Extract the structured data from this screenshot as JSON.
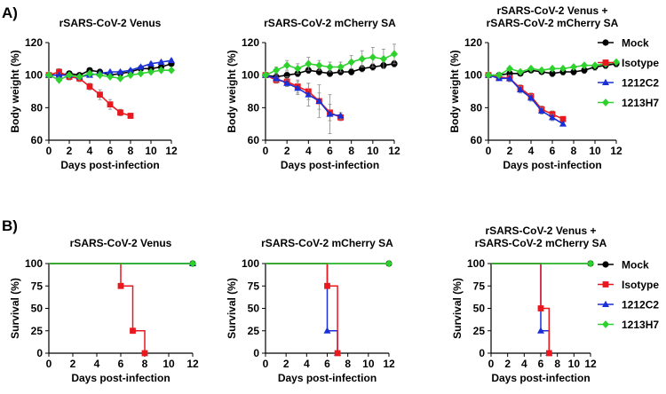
{
  "figure": {
    "panels": [
      {
        "label": "A)"
      },
      {
        "label": "B)"
      }
    ]
  },
  "legend": {
    "items": [
      {
        "name": "Mock",
        "color": "#000000",
        "marker": "circle"
      },
      {
        "name": "Isotype",
        "color": "#e8181e",
        "marker": "square"
      },
      {
        "name": "1212C2",
        "color": "#1a2fd6",
        "marker": "triangle"
      },
      {
        "name": "1213H7",
        "color": "#2ed12e",
        "marker": "diamond"
      }
    ]
  },
  "chart_data": [
    {
      "type": "line",
      "panel": "A",
      "title_lines": [
        "rSARS-CoV-2 Venus"
      ],
      "xlabel": "Days post-infection",
      "ylabel": "Body weight (%)",
      "xlim": [
        0,
        12
      ],
      "ylim": [
        60,
        120
      ],
      "xticks": [
        0,
        2,
        4,
        6,
        8,
        10,
        12
      ],
      "yticks": [
        60,
        80,
        100,
        120
      ],
      "series": [
        {
          "name": "Mock",
          "x": [
            0,
            1,
            2,
            3,
            4,
            5,
            6,
            7,
            8,
            9,
            10,
            11,
            12
          ],
          "y": [
            100,
            100,
            101,
            100,
            103,
            102,
            100,
            101,
            102,
            104,
            104,
            105,
            107
          ],
          "err": [
            1,
            1,
            1,
            1,
            1,
            1,
            1,
            1,
            1,
            1,
            1,
            1,
            1
          ]
        },
        {
          "name": "Isotype",
          "x": [
            0,
            1,
            2,
            3,
            4,
            5,
            6,
            7,
            8
          ],
          "y": [
            100,
            102,
            99,
            98,
            93,
            88,
            82,
            77,
            75
          ],
          "err": [
            1,
            2,
            2,
            2,
            2,
            3,
            3,
            2,
            1
          ]
        },
        {
          "name": "1212C2",
          "x": [
            0,
            1,
            2,
            3,
            4,
            5,
            6,
            7,
            8,
            9,
            10,
            11,
            12
          ],
          "y": [
            100,
            100,
            100,
            99,
            100,
            101,
            102,
            102,
            103,
            105,
            107,
            108,
            109
          ],
          "err": [
            1,
            1,
            1,
            1,
            1,
            1,
            1,
            1,
            1,
            1,
            1,
            1,
            1
          ]
        },
        {
          "name": "1213H7",
          "x": [
            0,
            1,
            2,
            3,
            4,
            5,
            6,
            7,
            8,
            9,
            10,
            11,
            12
          ],
          "y": [
            100,
            97,
            100,
            99,
            101,
            100,
            99,
            98,
            100,
            101,
            102,
            103,
            103
          ],
          "err": [
            1,
            1,
            1,
            1,
            1,
            1,
            1,
            1,
            1,
            1,
            1,
            1,
            1
          ]
        }
      ]
    },
    {
      "type": "line",
      "panel": "A",
      "title_lines": [
        "rSARS-CoV-2 mCherry SA"
      ],
      "xlabel": "Days post-infection",
      "ylabel": "Body weight (%)",
      "xlim": [
        0,
        12
      ],
      "ylim": [
        60,
        120
      ],
      "xticks": [
        0,
        2,
        4,
        6,
        8,
        10,
        12
      ],
      "yticks": [
        60,
        80,
        100,
        120
      ],
      "series": [
        {
          "name": "Mock",
          "x": [
            0,
            1,
            2,
            3,
            4,
            5,
            6,
            7,
            8,
            9,
            10,
            11,
            12
          ],
          "y": [
            100,
            99,
            100,
            101,
            103,
            102,
            101,
            102,
            102,
            104,
            105,
            106,
            107
          ],
          "err": [
            1,
            1,
            2,
            2,
            2,
            2,
            2,
            2,
            2,
            2,
            2,
            2,
            2
          ]
        },
        {
          "name": "Isotype",
          "x": [
            0,
            1,
            2,
            3,
            4,
            5,
            6,
            7
          ],
          "y": [
            100,
            97,
            96,
            93,
            90,
            84,
            77,
            74
          ],
          "err": [
            1,
            2,
            3,
            4,
            5,
            5,
            5,
            2
          ]
        },
        {
          "name": "1212C2",
          "x": [
            0,
            1,
            2,
            3,
            4,
            5,
            6,
            7
          ],
          "y": [
            100,
            98,
            95,
            92,
            88,
            84,
            76,
            75
          ],
          "err": [
            1,
            2,
            2,
            4,
            7,
            10,
            12,
            2
          ]
        },
        {
          "name": "1213H7",
          "x": [
            0,
            1,
            2,
            3,
            4,
            5,
            6,
            7,
            8,
            9,
            10,
            11,
            12
          ],
          "y": [
            100,
            103,
            106,
            104,
            107,
            106,
            105,
            105,
            108,
            110,
            111,
            110,
            113
          ],
          "err": [
            1,
            2,
            3,
            3,
            4,
            3,
            3,
            3,
            4,
            5,
            6,
            6,
            6
          ]
        }
      ]
    },
    {
      "type": "line",
      "panel": "A",
      "title_lines": [
        "rSARS-CoV-2 Venus +",
        "rSARS-CoV-2 mCherry SA"
      ],
      "xlabel": "Days post-infection",
      "ylabel": "Body weight (%)",
      "xlim": [
        0,
        12
      ],
      "ylim": [
        60,
        120
      ],
      "xticks": [
        0,
        2,
        4,
        6,
        8,
        10,
        12
      ],
      "yticks": [
        60,
        80,
        100,
        120
      ],
      "series": [
        {
          "name": "Mock",
          "x": [
            0,
            1,
            2,
            3,
            4,
            5,
            6,
            7,
            8,
            9,
            10,
            11,
            12
          ],
          "y": [
            100,
            100,
            101,
            101,
            103,
            102,
            101,
            102,
            102,
            103,
            105,
            106,
            107
          ],
          "err": [
            1,
            1,
            1,
            1,
            1,
            1,
            2,
            2,
            2,
            2,
            2,
            2,
            2
          ]
        },
        {
          "name": "Isotype",
          "x": [
            0,
            1,
            2,
            3,
            4,
            5,
            6,
            7
          ],
          "y": [
            100,
            99,
            98,
            92,
            87,
            79,
            76,
            73
          ],
          "err": [
            1,
            1,
            2,
            2,
            2,
            2,
            2,
            1
          ]
        },
        {
          "name": "1212C2",
          "x": [
            0,
            1,
            2,
            3,
            4,
            5,
            6,
            7
          ],
          "y": [
            100,
            98,
            98,
            91,
            86,
            78,
            74,
            70
          ],
          "err": [
            1,
            1,
            2,
            2,
            2,
            2,
            2,
            1
          ]
        },
        {
          "name": "1213H7",
          "x": [
            0,
            1,
            2,
            3,
            4,
            5,
            6,
            7,
            8,
            9,
            10,
            11,
            12
          ],
          "y": [
            100,
            100,
            104,
            102,
            104,
            103,
            104,
            104,
            105,
            106,
            106,
            107,
            108
          ],
          "err": [
            1,
            1,
            1,
            1,
            1,
            1,
            1,
            1,
            1,
            1,
            1,
            1,
            1
          ]
        }
      ]
    },
    {
      "type": "line",
      "panel": "B",
      "title_lines": [
        "rSARS-CoV-2 Venus"
      ],
      "xlabel": "Days post-infection",
      "ylabel": "Survival (%)",
      "xlim": [
        0,
        12
      ],
      "ylim": [
        0,
        100
      ],
      "xticks": [
        0,
        2,
        4,
        6,
        8,
        10,
        12
      ],
      "yticks": [
        0,
        25,
        50,
        75,
        100
      ],
      "series": [
        {
          "name": "Mock",
          "x": [
            0,
            12
          ],
          "y": [
            100,
            100
          ]
        },
        {
          "name": "Isotype",
          "x": [
            0,
            6,
            7,
            8
          ],
          "y": [
            100,
            75,
            25,
            0
          ]
        },
        {
          "name": "1212C2",
          "x": [
            0,
            12
          ],
          "y": [
            100,
            100
          ]
        },
        {
          "name": "1213H7",
          "x": [
            0,
            12
          ],
          "y": [
            100,
            100
          ]
        }
      ]
    },
    {
      "type": "line",
      "panel": "B",
      "title_lines": [
        "rSARS-CoV-2 mCherry SA"
      ],
      "xlabel": "Days post-infection",
      "ylabel": "Survival (%)",
      "xlim": [
        0,
        12
      ],
      "ylim": [
        0,
        100
      ],
      "xticks": [
        0,
        2,
        4,
        6,
        8,
        10,
        12
      ],
      "yticks": [
        0,
        25,
        50,
        75,
        100
      ],
      "series": [
        {
          "name": "Mock",
          "x": [
            0,
            12
          ],
          "y": [
            100,
            100
          ]
        },
        {
          "name": "Isotype",
          "x": [
            0,
            6,
            7
          ],
          "y": [
            100,
            75,
            0
          ]
        },
        {
          "name": "1212C2",
          "x": [
            0,
            6,
            7
          ],
          "y": [
            100,
            25,
            0
          ]
        },
        {
          "name": "1213H7",
          "x": [
            0,
            12
          ],
          "y": [
            100,
            100
          ]
        }
      ]
    },
    {
      "type": "line",
      "panel": "B",
      "title_lines": [
        "rSARS-CoV-2 Venus +",
        "rSARS-CoV-2 mCherry SA"
      ],
      "xlabel": "Days post-infection",
      "ylabel": "Survival (%)",
      "xlim": [
        0,
        12
      ],
      "ylim": [
        0,
        100
      ],
      "xticks": [
        0,
        2,
        4,
        6,
        8,
        10,
        12
      ],
      "yticks": [
        0,
        25,
        50,
        75,
        100
      ],
      "series": [
        {
          "name": "Mock",
          "x": [
            0,
            12
          ],
          "y": [
            100,
            100
          ]
        },
        {
          "name": "Isotype",
          "x": [
            0,
            6,
            7
          ],
          "y": [
            100,
            50,
            0
          ]
        },
        {
          "name": "1212C2",
          "x": [
            0,
            6,
            7
          ],
          "y": [
            100,
            25,
            0
          ]
        },
        {
          "name": "1213H7",
          "x": [
            0,
            12
          ],
          "y": [
            100,
            100
          ]
        }
      ]
    }
  ]
}
